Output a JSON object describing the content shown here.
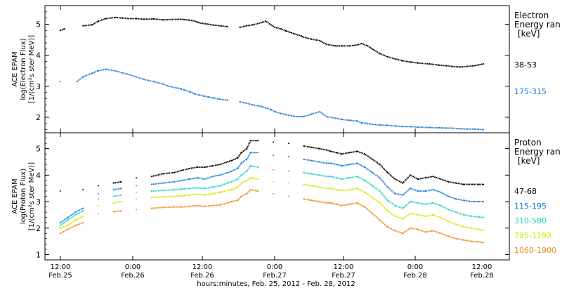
{
  "chart_data": [
    {
      "type": "scatter",
      "ylabel_lines": [
        "ACE EPAM",
        "log(Electron Flux)",
        "[1/(cm²s ster MeV)]"
      ],
      "legend_title_lines": [
        "Electron",
        "Energy ran",
        "[keV]"
      ],
      "ylim": [
        1.5,
        5.6
      ],
      "yticks": [
        2,
        3,
        4,
        5
      ],
      "series": [
        {
          "name": "38-53",
          "color": "#000000",
          "x": [
            0.0,
            0.6,
            3.0,
            4.2,
            5.0,
            6.0,
            7.2,
            8.2,
            9.0,
            10.0,
            11.0,
            12.3,
            13.5,
            14.3,
            15.8,
            16.3,
            17.0,
            17.7,
            18.2,
            18.9,
            19.5,
            20.2,
            21.0,
            22.0,
            23.6,
            24.5,
            25.3,
            26.4,
            27.0,
            27.7,
            28.2,
            29.0,
            29.7,
            30.4,
            31.0,
            31.7,
            32.0,
            33.0,
            34.1,
            35.0,
            36.2,
            37.0,
            38.0,
            39.0,
            39.6,
            40.4,
            41.0,
            42.0,
            43.0,
            44.0,
            45.0,
            46.0,
            47.0,
            48.5,
            49.8,
            50.7,
            51.4,
            52.5,
            53.5,
            54.4,
            55.0,
            55.6
          ],
          "y": [
            4.8,
            4.85,
            4.95,
            4.98,
            5.1,
            5.18,
            5.22,
            5.2,
            5.18,
            5.18,
            5.16,
            5.17,
            5.14,
            5.15,
            5.16,
            5.15,
            5.13,
            5.1,
            5.05,
            5.02,
            5.0,
            4.97,
            4.95,
            4.92,
            4.9,
            4.95,
            4.98,
            5.05,
            5.1,
            4.98,
            4.9,
            4.85,
            4.78,
            4.72,
            4.67,
            4.62,
            4.58,
            4.52,
            4.47,
            4.35,
            4.3,
            4.3,
            4.3,
            4.33,
            4.38,
            4.3,
            4.2,
            4.05,
            3.95,
            3.88,
            3.82,
            3.78,
            3.75,
            3.72,
            3.68,
            3.66,
            3.64,
            3.62,
            3.64,
            3.66,
            3.69,
            3.72
          ]
        },
        {
          "name": "175-315",
          "color": "#1e7fd8",
          "x": [
            0.0,
            2.2,
            3.0,
            4.2,
            5.0,
            6.0,
            7.2,
            8.2,
            9.0,
            10.0,
            11.0,
            12.3,
            13.5,
            14.3,
            15.8,
            16.3,
            17.0,
            17.7,
            18.2,
            18.9,
            19.5,
            20.2,
            21.0,
            22.0,
            23.6,
            24.5,
            25.3,
            26.4,
            27.0,
            27.7,
            28.2,
            29.0,
            29.7,
            30.4,
            31.0,
            31.7,
            32.0,
            33.0,
            34.1,
            35.0,
            36.2,
            37.0,
            38.0,
            39.0,
            39.6,
            40.4,
            41.0,
            42.0,
            43.0,
            44.0,
            45.0,
            46.0,
            47.0,
            48.5,
            49.8,
            50.7,
            51.4,
            52.5,
            53.5,
            54.4,
            55.0,
            55.6
          ],
          "y": [
            3.15,
            3.15,
            3.3,
            3.42,
            3.5,
            3.55,
            3.5,
            3.43,
            3.38,
            3.3,
            3.22,
            3.15,
            3.07,
            3.0,
            2.92,
            2.88,
            2.82,
            2.75,
            2.72,
            2.68,
            2.65,
            2.62,
            2.58,
            2.55,
            2.5,
            2.45,
            2.4,
            2.35,
            2.3,
            2.25,
            2.18,
            2.12,
            2.08,
            2.05,
            2.02,
            2.02,
            2.02,
            2.1,
            2.18,
            2.02,
            1.97,
            1.93,
            1.9,
            1.88,
            1.82,
            1.8,
            1.77,
            1.75,
            1.74,
            1.72,
            1.7,
            1.7,
            1.68,
            1.67,
            1.66,
            1.65,
            1.65,
            1.63,
            1.62,
            1.62,
            1.61,
            1.6
          ]
        }
      ]
    },
    {
      "type": "scatter",
      "ylabel_lines": [
        "ACE EPAM",
        "log(Proton Flux)",
        "[1/(cm²s ster MeV)]"
      ],
      "legend_title_lines": [
        "Proton",
        "Energy ran",
        "[keV]"
      ],
      "ylim": [
        0.8,
        5.6
      ],
      "yticks": [
        1,
        2,
        3,
        4,
        5
      ],
      "series": [
        {
          "name": "47-68",
          "color": "#000000",
          "x": [
            0.0,
            3.0,
            5.0,
            7.0,
            8.0,
            10.0,
            12.0,
            13.5,
            15.0,
            16.0,
            17.0,
            18.0,
            19.0,
            20.0,
            21.0,
            22.0,
            22.5,
            23.3,
            23.8,
            24.5,
            25.0,
            26.0,
            28.0,
            30.0,
            32.0,
            33.0,
            34.0,
            35.0,
            35.5,
            36.3,
            37.0,
            38.0,
            39.0,
            40.0,
            41.0,
            42.0,
            43.0,
            44.0,
            45.0,
            46.0,
            47.0,
            48.0,
            49.0,
            50.0,
            51.0,
            52.0,
            53.0,
            54.0,
            55.0,
            55.6
          ],
          "y": [
            3.4,
            3.45,
            3.6,
            3.7,
            3.75,
            3.9,
            3.95,
            4.05,
            4.1,
            4.18,
            4.25,
            4.3,
            4.3,
            4.35,
            4.4,
            4.5,
            4.55,
            4.65,
            4.85,
            5.0,
            5.3,
            5.3,
            5.25,
            5.2,
            5.1,
            5.05,
            5.0,
            4.95,
            4.9,
            4.85,
            4.8,
            4.85,
            4.9,
            4.8,
            4.6,
            4.4,
            4.1,
            3.85,
            3.7,
            4.0,
            3.85,
            3.9,
            3.95,
            3.85,
            3.75,
            3.7,
            3.65,
            3.65,
            3.65,
            3.65
          ]
        },
        {
          "name": "115-195",
          "color": "#1e7fd8",
          "x": [
            0.0,
            1.0,
            2.0,
            3.0,
            5.0,
            7.0,
            8.0,
            10.0,
            12.0,
            13.5,
            15.0,
            16.0,
            17.0,
            18.0,
            19.0,
            20.0,
            21.0,
            22.0,
            22.5,
            23.3,
            23.8,
            24.5,
            25.0,
            26.0,
            28.0,
            30.0,
            32.0,
            33.0,
            34.0,
            35.0,
            35.5,
            36.3,
            37.0,
            38.0,
            39.0,
            40.0,
            41.0,
            42.0,
            43.0,
            44.0,
            45.0,
            46.0,
            47.0,
            48.0,
            49.0,
            50.0,
            51.0,
            52.0,
            53.0,
            54.0,
            55.0,
            55.6
          ],
          "y": [
            2.2,
            2.4,
            2.6,
            2.75,
            3.3,
            3.45,
            3.5,
            3.6,
            3.65,
            3.7,
            3.75,
            3.8,
            3.85,
            3.9,
            3.85,
            3.95,
            4.0,
            4.1,
            4.15,
            4.25,
            4.45,
            4.6,
            4.85,
            4.85,
            4.75,
            4.7,
            4.6,
            4.55,
            4.5,
            4.45,
            4.45,
            4.4,
            4.35,
            4.4,
            4.45,
            4.3,
            4.1,
            3.9,
            3.55,
            3.3,
            3.25,
            3.5,
            3.4,
            3.4,
            3.45,
            3.35,
            3.2,
            3.1,
            3.05,
            3.0,
            3.0,
            3.0
          ]
        },
        {
          "name": "310-580",
          "color": "#22d3c6",
          "x": [
            0.0,
            1.0,
            2.0,
            3.0,
            5.0,
            7.0,
            8.0,
            10.0,
            12.0,
            13.5,
            15.0,
            16.0,
            17.0,
            18.0,
            19.0,
            20.0,
            21.0,
            22.0,
            22.5,
            23.3,
            23.8,
            24.5,
            25.0,
            26.0,
            28.0,
            30.0,
            32.0,
            33.0,
            34.0,
            35.0,
            35.5,
            36.3,
            37.0,
            38.0,
            39.0,
            40.0,
            41.0,
            42.0,
            43.0,
            44.0,
            45.0,
            46.0,
            47.0,
            48.0,
            49.0,
            50.0,
            51.0,
            52.0,
            53.0,
            54.0,
            55.0,
            55.6
          ],
          "y": [
            2.1,
            2.3,
            2.5,
            2.65,
            3.1,
            3.2,
            3.25,
            3.35,
            3.4,
            3.42,
            3.45,
            3.47,
            3.5,
            3.52,
            3.5,
            3.55,
            3.6,
            3.7,
            3.75,
            3.85,
            4.0,
            4.15,
            4.35,
            4.3,
            4.2,
            4.15,
            4.1,
            4.05,
            4.0,
            3.95,
            3.95,
            3.9,
            3.85,
            3.9,
            3.95,
            3.8,
            3.6,
            3.4,
            3.05,
            2.85,
            2.75,
            3.0,
            2.95,
            2.9,
            2.95,
            2.85,
            2.7,
            2.6,
            2.5,
            2.45,
            2.42,
            2.4
          ]
        },
        {
          "name": "795-1193",
          "color": "#d6e600",
          "x": [
            0.0,
            1.0,
            2.0,
            3.0,
            5.0,
            7.0,
            8.0,
            10.0,
            12.0,
            13.5,
            15.0,
            16.0,
            17.0,
            18.0,
            19.0,
            20.0,
            21.0,
            22.0,
            22.5,
            23.3,
            23.8,
            24.5,
            25.0,
            26.0,
            28.0,
            30.0,
            32.0,
            33.0,
            34.0,
            35.0,
            35.5,
            36.3,
            37.0,
            38.0,
            39.0,
            40.0,
            41.0,
            42.0,
            43.0,
            44.0,
            45.0,
            46.0,
            47.0,
            48.0,
            49.0,
            50.0,
            51.0,
            52.0,
            53.0,
            54.0,
            55.0,
            55.6
          ],
          "y": [
            2.0,
            2.1,
            2.3,
            2.45,
            2.85,
            2.95,
            3.0,
            3.1,
            3.15,
            3.18,
            3.2,
            3.22,
            3.25,
            3.28,
            3.25,
            3.3,
            3.35,
            3.42,
            3.45,
            3.55,
            3.7,
            3.8,
            3.9,
            3.85,
            3.75,
            3.7,
            3.65,
            3.6,
            3.55,
            3.5,
            3.5,
            3.45,
            3.42,
            3.45,
            3.5,
            3.35,
            3.15,
            2.95,
            2.65,
            2.45,
            2.35,
            2.55,
            2.5,
            2.45,
            2.5,
            2.4,
            2.25,
            2.15,
            2.05,
            2.0,
            1.95,
            1.92
          ]
        },
        {
          "name": "1060-1900",
          "color": "#f08a1e",
          "x": [
            0.0,
            1.0,
            2.0,
            3.0,
            5.0,
            7.0,
            8.0,
            10.0,
            12.0,
            13.5,
            15.0,
            16.0,
            17.0,
            18.0,
            19.0,
            20.0,
            21.0,
            22.0,
            22.5,
            23.3,
            23.8,
            24.5,
            25.0,
            26.0,
            28.0,
            30.0,
            32.0,
            33.0,
            34.0,
            35.0,
            35.5,
            36.3,
            37.0,
            38.0,
            39.0,
            40.0,
            41.0,
            42.0,
            43.0,
            44.0,
            45.0,
            46.0,
            47.0,
            48.0,
            49.0,
            50.0,
            51.0,
            52.0,
            53.0,
            54.0,
            55.0,
            55.6
          ],
          "y": [
            1.8,
            1.95,
            2.1,
            2.2,
            2.55,
            2.62,
            2.65,
            2.7,
            2.75,
            2.78,
            2.8,
            2.8,
            2.82,
            2.85,
            2.82,
            2.85,
            2.88,
            2.95,
            3.0,
            3.05,
            3.2,
            3.3,
            3.45,
            3.4,
            3.3,
            3.2,
            3.1,
            3.05,
            3.0,
            2.95,
            2.95,
            2.9,
            2.85,
            2.9,
            2.95,
            2.8,
            2.55,
            2.3,
            2.05,
            1.9,
            1.8,
            2.0,
            1.95,
            1.85,
            1.9,
            1.8,
            1.7,
            1.6,
            1.55,
            1.5,
            1.48,
            1.45
          ]
        }
      ]
    }
  ],
  "x_axis": {
    "range_hours": [
      -2,
      59
    ],
    "tick_hours": [
      0,
      12,
      24,
      36,
      48,
      60
    ],
    "tick_labels": [
      [
        "12:00",
        "Feb.25"
      ],
      [
        "0:00",
        "Feb.26"
      ],
      [
        "12:00",
        "Feb.26"
      ],
      [
        "0:00",
        "Feb.27"
      ],
      [
        "12:00",
        "Feb.27"
      ],
      [
        "0:00",
        "Feb.28"
      ],
      [
        "12:00",
        "Feb.28"
      ]
    ],
    "tick_label_hours": [
      0,
      12,
      24,
      36,
      48,
      60,
      72
    ],
    "title": "hours:minutes, Feb. 25, 2012 - Feb. 28, 2012"
  }
}
